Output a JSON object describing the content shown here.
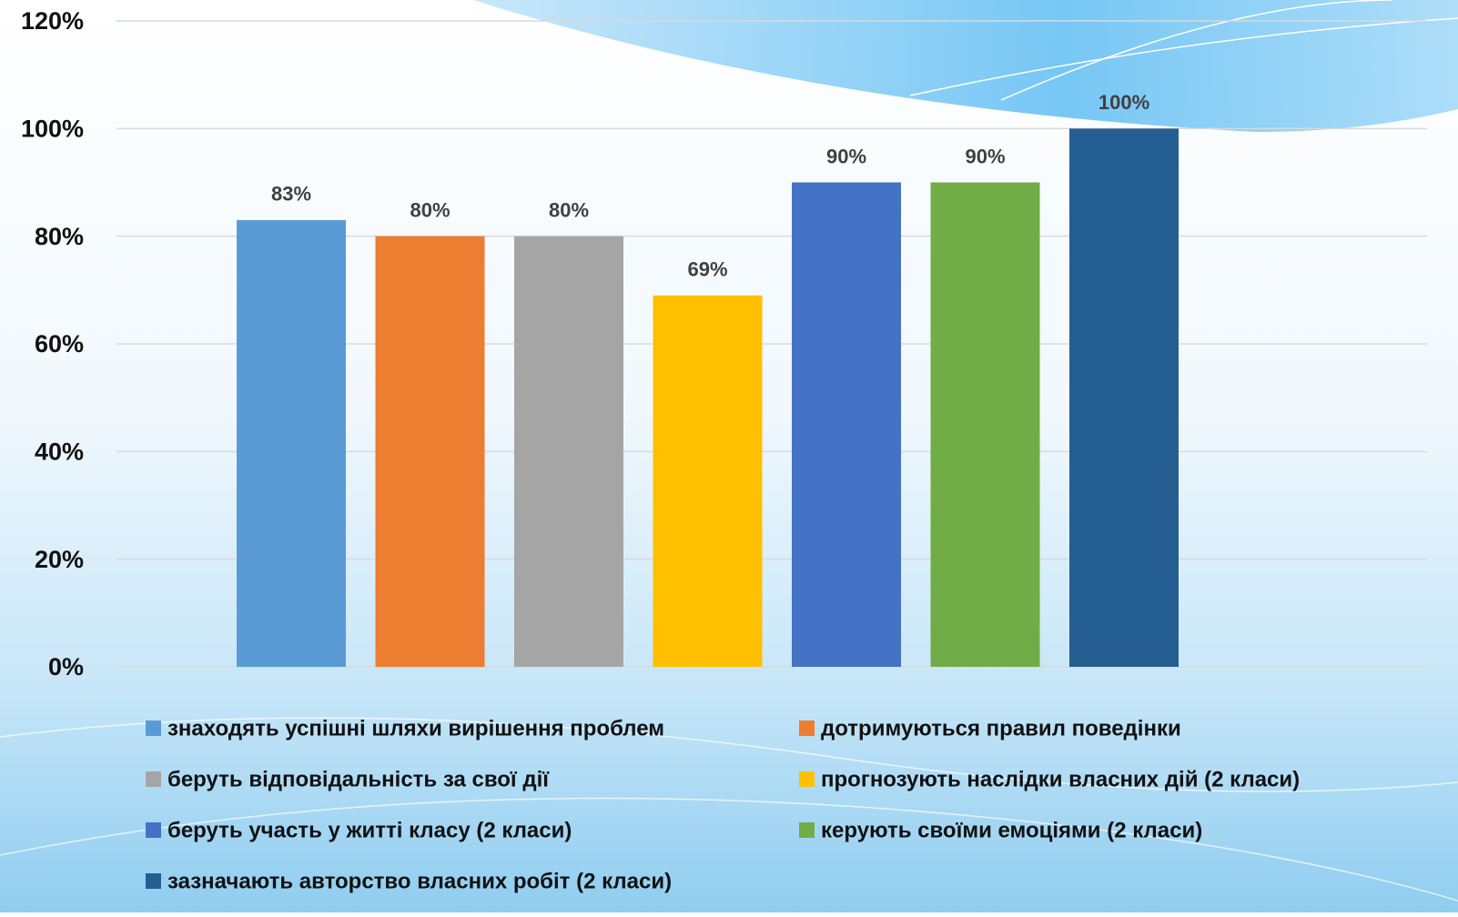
{
  "chart_data": {
    "type": "bar",
    "categories": [
      null
    ],
    "series": [
      {
        "name": "знаходять успішні шляхи вирішення проблем",
        "color": "#5b9bd5",
        "values": [
          83
        ],
        "value_labels": [
          "83%"
        ]
      },
      {
        "name": "дотримуються правил поведінки",
        "color": "#ed7d31",
        "values": [
          80
        ],
        "value_labels": [
          "80%"
        ]
      },
      {
        "name": "беруть відповідальність за свої дії",
        "color": "#a5a5a5",
        "values": [
          80
        ],
        "value_labels": [
          "80%"
        ]
      },
      {
        "name": "прогнозують наслідки власних дій (2 класи)",
        "color": "#ffc000",
        "values": [
          69
        ],
        "value_labels": [
          "69%"
        ]
      },
      {
        "name": "беруть участь у житті класу (2 класи)",
        "color": "#4472c4",
        "values": [
          90
        ],
        "value_labels": [
          "90%"
        ]
      },
      {
        "name": "керують своїми емоціями (2 класи)",
        "color": "#70ad47",
        "values": [
          90
        ],
        "value_labels": [
          "90%"
        ]
      },
      {
        "name": "зазначають авторство власних робіт (2 класи)",
        "color": "#255e91",
        "values": [
          100
        ],
        "value_labels": [
          "100%"
        ]
      }
    ],
    "ylim": [
      0,
      120
    ],
    "yticks": [
      {
        "value": 0,
        "label": "0%"
      },
      {
        "value": 20,
        "label": "20%"
      },
      {
        "value": 40,
        "label": "40%"
      },
      {
        "value": 60,
        "label": "60%"
      },
      {
        "value": 80,
        "label": "80%"
      },
      {
        "value": 100,
        "label": "100%"
      },
      {
        "value": 120,
        "label": "120%"
      }
    ],
    "grid": true,
    "legend": "bottom"
  }
}
